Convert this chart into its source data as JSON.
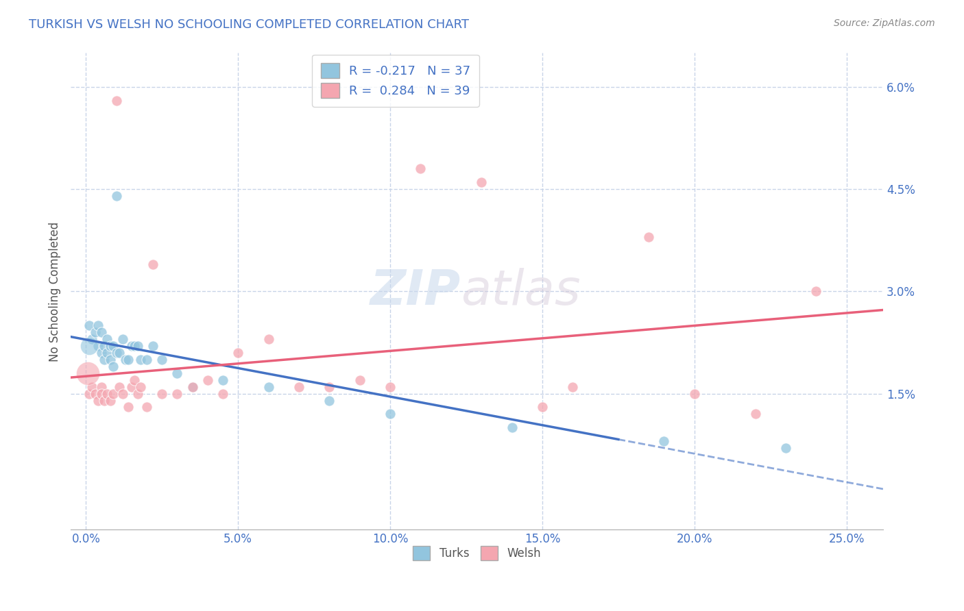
{
  "title": "TURKISH VS WELSH NO SCHOOLING COMPLETED CORRELATION CHART",
  "source_text": "Source: ZipAtlas.com",
  "xlabel_ticks": [
    "0.0%",
    "5.0%",
    "10.0%",
    "15.0%",
    "20.0%",
    "25.0%"
  ],
  "xlabel_vals": [
    0.0,
    0.05,
    0.1,
    0.15,
    0.2,
    0.25
  ],
  "ylabel_ticks": [
    "6.0%",
    "4.5%",
    "3.0%",
    "1.5%"
  ],
  "ylabel_vals": [
    0.06,
    0.045,
    0.03,
    0.015
  ],
  "xlim": [
    -0.005,
    0.262
  ],
  "ylim": [
    -0.005,
    0.065
  ],
  "ylabel": "No Schooling Completed",
  "turks_color": "#92c5de",
  "welsh_color": "#f4a6b0",
  "turks_R": -0.217,
  "turks_N": 37,
  "welsh_R": 0.284,
  "welsh_N": 39,
  "turks_scatter": [
    [
      0.001,
      0.025
    ],
    [
      0.002,
      0.023
    ],
    [
      0.003,
      0.024
    ],
    [
      0.004,
      0.025
    ],
    [
      0.004,
      0.022
    ],
    [
      0.005,
      0.021
    ],
    [
      0.005,
      0.024
    ],
    [
      0.006,
      0.022
    ],
    [
      0.006,
      0.02
    ],
    [
      0.007,
      0.023
    ],
    [
      0.007,
      0.021
    ],
    [
      0.008,
      0.022
    ],
    [
      0.008,
      0.02
    ],
    [
      0.009,
      0.022
    ],
    [
      0.009,
      0.019
    ],
    [
      0.01,
      0.044
    ],
    [
      0.01,
      0.021
    ],
    [
      0.011,
      0.021
    ],
    [
      0.012,
      0.023
    ],
    [
      0.013,
      0.02
    ],
    [
      0.014,
      0.02
    ],
    [
      0.015,
      0.022
    ],
    [
      0.016,
      0.022
    ],
    [
      0.017,
      0.022
    ],
    [
      0.018,
      0.02
    ],
    [
      0.02,
      0.02
    ],
    [
      0.022,
      0.022
    ],
    [
      0.025,
      0.02
    ],
    [
      0.03,
      0.018
    ],
    [
      0.035,
      0.016
    ],
    [
      0.045,
      0.017
    ],
    [
      0.06,
      0.016
    ],
    [
      0.08,
      0.014
    ],
    [
      0.1,
      0.012
    ],
    [
      0.14,
      0.01
    ],
    [
      0.19,
      0.008
    ],
    [
      0.23,
      0.007
    ]
  ],
  "welsh_scatter": [
    [
      0.001,
      0.015
    ],
    [
      0.002,
      0.016
    ],
    [
      0.003,
      0.015
    ],
    [
      0.004,
      0.014
    ],
    [
      0.005,
      0.016
    ],
    [
      0.005,
      0.015
    ],
    [
      0.006,
      0.014
    ],
    [
      0.007,
      0.015
    ],
    [
      0.008,
      0.014
    ],
    [
      0.009,
      0.015
    ],
    [
      0.01,
      0.058
    ],
    [
      0.011,
      0.016
    ],
    [
      0.012,
      0.015
    ],
    [
      0.014,
      0.013
    ],
    [
      0.015,
      0.016
    ],
    [
      0.016,
      0.017
    ],
    [
      0.017,
      0.015
    ],
    [
      0.018,
      0.016
    ],
    [
      0.02,
      0.013
    ],
    [
      0.022,
      0.034
    ],
    [
      0.025,
      0.015
    ],
    [
      0.03,
      0.015
    ],
    [
      0.035,
      0.016
    ],
    [
      0.04,
      0.017
    ],
    [
      0.045,
      0.015
    ],
    [
      0.05,
      0.021
    ],
    [
      0.06,
      0.023
    ],
    [
      0.07,
      0.016
    ],
    [
      0.08,
      0.016
    ],
    [
      0.09,
      0.017
    ],
    [
      0.1,
      0.016
    ],
    [
      0.11,
      0.048
    ],
    [
      0.13,
      0.046
    ],
    [
      0.15,
      0.013
    ],
    [
      0.16,
      0.016
    ],
    [
      0.185,
      0.038
    ],
    [
      0.2,
      0.015
    ],
    [
      0.22,
      0.012
    ],
    [
      0.24,
      0.03
    ]
  ],
  "watermark_zip": "ZIP",
  "watermark_atlas": "atlas",
  "background_color": "#ffffff",
  "grid_color": "#c8d4e8",
  "turks_line_color": "#4472c4",
  "welsh_line_color": "#e8607a",
  "tick_color": "#4472c4",
  "title_color": "#4472c4",
  "title_fontsize": 13,
  "ylabel_color": "#555555"
}
